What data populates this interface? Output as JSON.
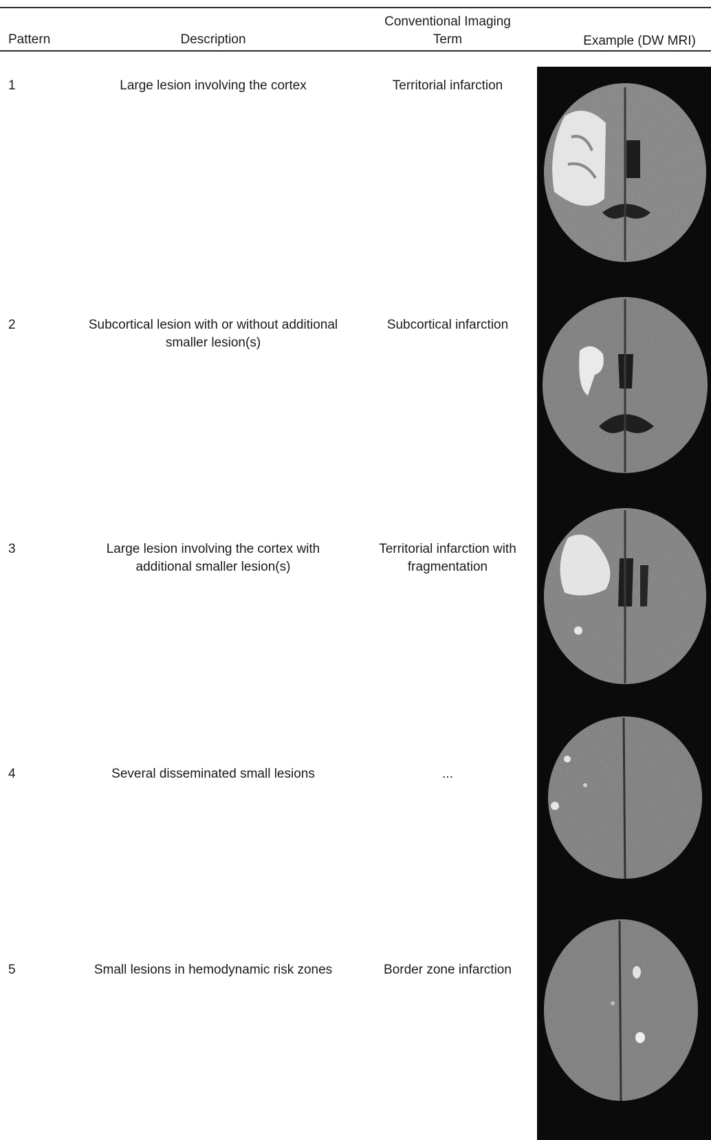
{
  "headers": {
    "pattern": "Pattern",
    "description": "Description",
    "term_line1": "Conventional Imaging",
    "term_line2": "Term",
    "example": "Example (DW MRI)"
  },
  "rows": [
    {
      "pattern": "1",
      "description_lines": [
        "Large lesion involving the cortex"
      ],
      "term_lines": [
        "Territorial infarction"
      ],
      "image": "dw-mri-brain-slice"
    },
    {
      "pattern": "2",
      "description_lines": [
        "Subcortical lesion with or without additional",
        "smaller lesion(s)"
      ],
      "term_lines": [
        "Subcortical infarction"
      ],
      "image": "dw-mri-brain-slice"
    },
    {
      "pattern": "3",
      "description_lines": [
        "Large lesion involving the cortex with",
        "additional smaller lesion(s)"
      ],
      "term_lines": [
        "Territorial infarction with",
        "fragmentation"
      ],
      "image": "dw-mri-brain-slice"
    },
    {
      "pattern": "4",
      "description_lines": [
        "Several disseminated small lesions"
      ],
      "term_lines": [
        "..."
      ],
      "image": "dw-mri-brain-slice"
    },
    {
      "pattern": "5",
      "description_lines": [
        "Small lesions in hemodynamic risk zones"
      ],
      "term_lines": [
        "Border zone infarction"
      ],
      "image": "dw-mri-brain-slice"
    }
  ],
  "colors": {
    "rule": "#2a2a2a",
    "image_background": "#0b0b0b",
    "brain_tissue": "#6e6e6e",
    "lesion": "#f2f2f2"
  }
}
